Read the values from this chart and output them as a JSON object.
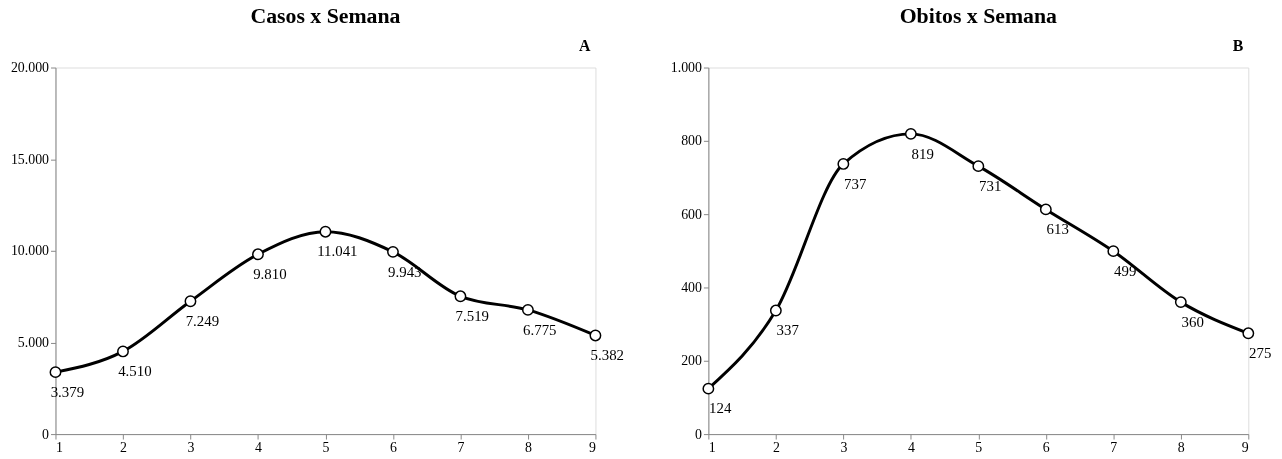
{
  "chart_data": [
    {
      "type": "line",
      "title": "Casos x Semana",
      "annotations": [
        "A"
      ],
      "x": [
        1,
        2,
        3,
        4,
        5,
        6,
        7,
        8,
        9
      ],
      "xlim": [
        1,
        9
      ],
      "xticks": [
        1,
        2,
        3,
        4,
        5,
        6,
        7,
        8,
        9
      ],
      "ylim": [
        0,
        20000
      ],
      "yticks": [
        0,
        {
          "value": 5000,
          "label": "5.000"
        },
        {
          "value": 10000,
          "label": "10.000"
        },
        {
          "value": 15000,
          "label": "15.000"
        },
        {
          "value": 20000,
          "label": "20.000"
        }
      ],
      "series": [
        {
          "color": "#000000",
          "values": [
            3379,
            4510,
            7249,
            9810,
            11041,
            9943,
            7519,
            6775,
            5382
          ],
          "value_labels": [
            "3.379",
            "4.510",
            "7.249",
            "9.810",
            "11.041",
            "9.943",
            "7.519",
            "6.775",
            "5.382"
          ]
        }
      ],
      "marker": "circle",
      "line_style": "solid",
      "grid": false
    },
    {
      "type": "line",
      "title": "Obitos x Semana",
      "annotations": [
        "B"
      ],
      "x": [
        1,
        2,
        3,
        4,
        5,
        6,
        7,
        8,
        9
      ],
      "xlim": [
        1,
        9
      ],
      "xticks": [
        1,
        2,
        3,
        4,
        5,
        6,
        7,
        8,
        9
      ],
      "ylim": [
        0,
        1000
      ],
      "yticks": [
        0,
        200,
        400,
        600,
        800,
        {
          "value": 1000,
          "label": "1.000"
        }
      ],
      "series": [
        {
          "color": "#000000",
          "values": [
            124,
            337,
            737,
            819,
            731,
            613,
            499,
            360,
            275
          ],
          "value_labels": [
            "124",
            "337",
            "737",
            "819",
            "731",
            "613",
            "499",
            "360",
            "275"
          ]
        }
      ],
      "marker": "circle",
      "line_style": "solid",
      "grid": false
    }
  ]
}
